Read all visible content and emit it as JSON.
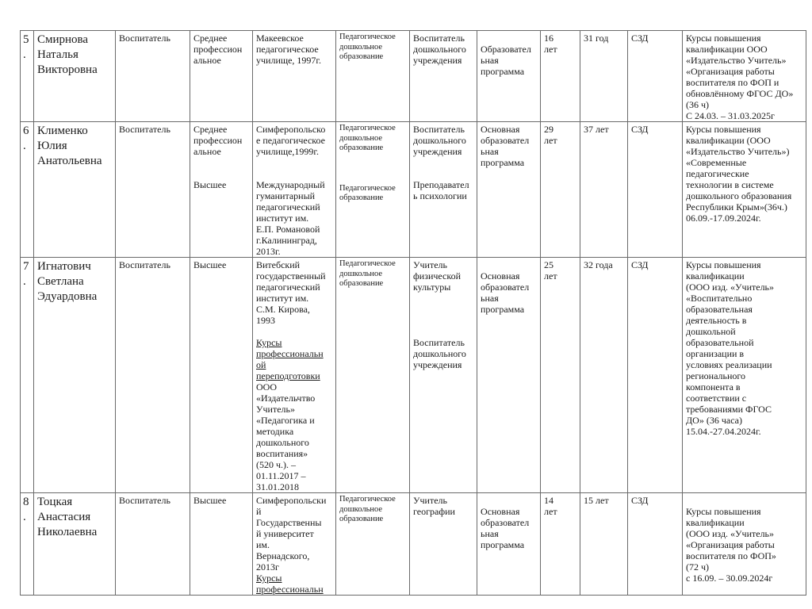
{
  "rows": [
    {
      "num": "5\n.",
      "name": "Смирнова\nНаталья\nВикторовна",
      "position": "Воспитатель",
      "level": [
        "Среднее\nпрофессион\nальное"
      ],
      "institution": [
        "Макеевское\nпедагогическое\nучилище, 1997г."
      ],
      "institution_underlined": "",
      "institution_after": "",
      "education": [
        "Педагогическое\nдошкольное\nобразование"
      ],
      "specialty": [
        "Воспитатель\nдошкольного\nучреждения"
      ],
      "program": "Образовател\nьная\nпрограмма",
      "experience": "16\nлет",
      "ped_experience": "31 год",
      "category": "СЗД",
      "courses": "Курсы повышения\nквалификации ООО\n«Издательство Учитель»\n«Организация работы\nвоспитателя по ФОП и\nобновлённому ФГОС ДО»\n(36 ч)\nС 24.03. – 31.03.2025г"
    },
    {
      "num": "6\n.",
      "name": "Клименко\nЮлия\nАнатольевна",
      "position": "Воспитатель",
      "level": [
        "Среднее\nпрофессион\nальное",
        "Высшее"
      ],
      "institution": [
        "Симферопольско\nе педагогическое\nучилище,1999г.",
        "Международный\nгуманитарный\nпедагогический\nинститут им.\nЕ.П. Романовой\nг.Калининград,\n2013г."
      ],
      "institution_underlined": "",
      "institution_after": "",
      "education": [
        "Педагогическое\nдошкольное\nобразование",
        "Педагогическое\nобразование"
      ],
      "specialty": [
        "Воспитатель\nдошкольного\nучреждения",
        "Преподавател\nь психологии"
      ],
      "program": "Основная\nобразовател\nьная\nпрограмма",
      "experience": "29\nлет",
      "ped_experience": "37 лет",
      "category": "СЗД",
      "courses": "Курсы повышения\nквалификации (ООО\n«Издательство Учитель»)\n«Современные\nпедагогические\nтехнологии в системе\nдошкольного образования\nРеспублики Крым»(36ч.)\n06.09.-17.09.2024г."
    },
    {
      "num": "7\n.",
      "name": "Игнатович\nСветлана\nЭдуардовна",
      "position": "Воспитатель",
      "level": [
        "Высшее"
      ],
      "institution": [
        "Витебский\nгосударственный\nпедагогический\nинститут им.\nС.М. Кирова,\n1993"
      ],
      "institution_underlined": "Курсы\nпрофессиональн\nой\nпереподготовки",
      "institution_after": "ООО\n«Издательчтво\nУчитель»\n«Педагогика и\nметодика\nдошкольного\nвоспитания»\n(520 ч.). –\n01.11.2017 –\n31.01.2018",
      "education": [
        "Педагогическое\nдошкольное\nобразование"
      ],
      "specialty": [
        "Учитель\nфизической\nкультуры",
        "Воспитатель\nдошкольного\nучреждения"
      ],
      "program": "Основная\nобразовател\nьная\nпрограмма",
      "experience": "25\nлет",
      "ped_experience": "32 года",
      "category": "СЗД",
      "courses": "Курсы повышения\nквалификации\n(ООО изд. «Учитель»\n«Воспитательно\nобразовательная\nдеятельность в\nдошкольной\nобразовательной\nорганизации в\nусловиях реализации\nрегионального\nкомпонента в\nсоответствии с\nтребованиями ФГОС\nДО» (36 часа)\n15.04.-27.04.2024г."
    },
    {
      "num": "8\n.",
      "name": "Тоцкая\nАнастасия\nНиколаевна",
      "position": "Воспитатель",
      "level": [
        "Высшее"
      ],
      "institution": [
        "Симферопольски\nй\nГосударственны\nй университет\nим.\nВернадского,\n2013г"
      ],
      "institution_underlined": "Курсы\nпрофессиональн",
      "institution_after": "",
      "education": [
        "Педагогическое\nдошкольное\nобразование"
      ],
      "specialty": [
        "Учитель\nгеографии"
      ],
      "program": "Основная\nобразовател\nьная\nпрограмма",
      "experience": "14\nлет",
      "ped_experience": "15 лет",
      "category": "СЗД",
      "courses": "Курсы повышения\nквалификации\n(ООО изд. «Учитель»\n«Организация работы\nвоспитателя по ФОП»\n(72 ч)\nс 16.09. – 30.09.2024г"
    }
  ]
}
